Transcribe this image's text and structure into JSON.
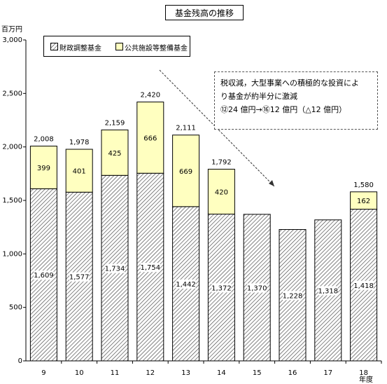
{
  "chart_data": {
    "type": "bar",
    "stacked": true,
    "title": "基金残高の推移",
    "ylabel": "百万円",
    "xlabel": "年度",
    "categories": [
      "9",
      "10",
      "11",
      "12",
      "13",
      "14",
      "15",
      "16",
      "17",
      "18"
    ],
    "series": [
      {
        "name": "財政調整基金",
        "values": [
          1609,
          1577,
          1734,
          1754,
          1442,
          1372,
          1370,
          1228,
          1318,
          1418
        ]
      },
      {
        "name": "公共施設等整備基金",
        "values": [
          399,
          401,
          425,
          666,
          669,
          420,
          null,
          null,
          null,
          162
        ]
      }
    ],
    "totals": [
      2008,
      1978,
      2159,
      2420,
      2111,
      1792,
      null,
      null,
      null,
      1580
    ],
    "ylim": [
      0,
      3000
    ],
    "yticks": [
      "0",
      "500",
      "1,000",
      "1,500",
      "2,000",
      "2,500",
      "3,000"
    ],
    "grid": false,
    "legend_position": "top-left",
    "annotation": {
      "lines": [
        "税収減，大型事業への積極的な投資により基金が約半分に激減",
        "⑫24 億円→⑯12 億円（△12 億円）"
      ],
      "line1a": "税収減，大型事業への積極的な投資によ",
      "line1b": "り基金が約半分に激減",
      "line2": "⑫24 億円→⑯12 億円（△12 億円）"
    }
  },
  "colors": {
    "bottom_fill_bg": "#ffffff",
    "bottom_hatch": "#444444",
    "top_fill": "#ffffc0",
    "stroke": "#000000"
  }
}
